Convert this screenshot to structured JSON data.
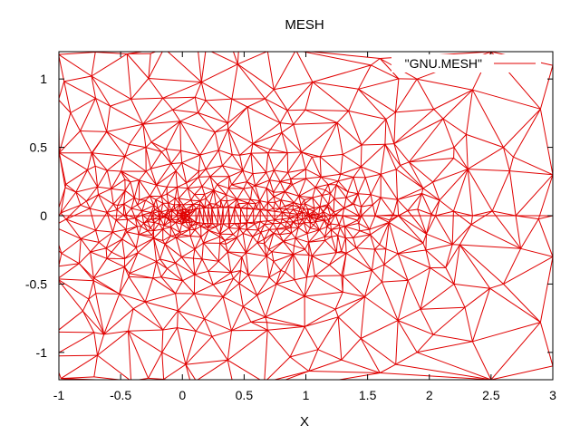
{
  "chart_data": {
    "type": "line",
    "title": "MESH",
    "xlabel": "X",
    "ylabel": "",
    "xlim": [
      -1,
      3
    ],
    "ylim": [
      -1.2,
      1.2
    ],
    "x_ticks": [
      -1,
      -0.5,
      0,
      0.5,
      1,
      1.5,
      2,
      2.5,
      3
    ],
    "x_tick_labels": [
      "-1",
      "-0.5",
      "0",
      "0.5",
      "1",
      "1.5",
      "2",
      "2.5",
      "3"
    ],
    "y_ticks": [
      -1,
      -0.5,
      0,
      0.5,
      1
    ],
    "y_tick_labels": [
      "-1",
      "-0.5",
      "0",
      "0.5",
      "1"
    ],
    "grid": false,
    "legend": {
      "position": "top-right"
    },
    "series": [
      {
        "name": "\"GNU.MESH\"",
        "color": "#e00000",
        "style": "triangular-mesh"
      }
    ]
  }
}
